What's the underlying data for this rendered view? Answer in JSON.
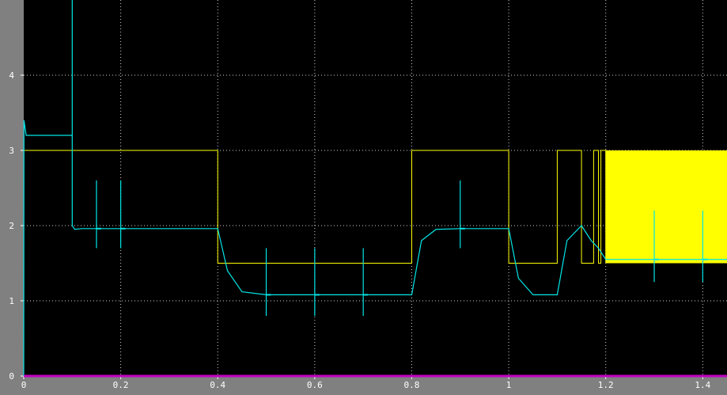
{
  "chart_data": {
    "type": "line",
    "title": "",
    "xlabel": "",
    "ylabel": "",
    "xlim": [
      0,
      1.45
    ],
    "ylim": [
      0,
      5
    ],
    "grid": true,
    "xticks": [
      0,
      0.2,
      0.4,
      0.6,
      0.8,
      1,
      1.2,
      1.4
    ],
    "yticks": [
      0,
      1,
      2,
      3,
      4
    ],
    "xtick_labels": [
      "0",
      "0.2",
      "0.4",
      "0.6",
      "0.8",
      "1",
      "1.2",
      "1.4"
    ],
    "ytick_labels": [
      "0",
      "1",
      "2",
      "3",
      "4"
    ],
    "colors": {
      "background": "#000000",
      "frame": "#808080",
      "grid": "#d0d0d0",
      "series1": "#ffff00",
      "series2": "#00e6e6",
      "baseline": "#c000c0"
    },
    "series": [
      {
        "color": "#ffff00",
        "step": true,
        "x": [
          0,
          0.4,
          0.8,
          1.0,
          1.1,
          1.15,
          1.175,
          1.185,
          1.19,
          1.2
        ],
        "y": [
          3,
          1.5,
          3,
          1.5,
          3,
          1.5,
          3,
          1.5,
          3,
          1.5
        ],
        "filled_oscillation": {
          "x": [
            1.2,
            1.45
          ],
          "y": [
            1.5,
            3
          ]
        }
      },
      {
        "color": "#00e6e6",
        "x": [
          0,
          0.0005,
          0.005,
          0.1,
          0.1,
          0.1,
          0.105,
          0.12,
          0.2,
          0.4,
          0.42,
          0.45,
          0.5,
          0.8,
          0.82,
          0.85,
          0.9,
          1.0,
          1.02,
          1.05,
          1.1,
          1.12,
          1.15,
          1.17,
          1.185,
          1.2,
          1.45
        ],
        "y": [
          0,
          3.4,
          3.2,
          3.2,
          5,
          2.0,
          1.95,
          1.96,
          1.96,
          1.96,
          1.4,
          1.12,
          1.08,
          1.08,
          1.8,
          1.95,
          1.96,
          1.96,
          1.3,
          1.08,
          1.08,
          1.8,
          2.0,
          1.8,
          1.7,
          1.55,
          1.55
        ],
        "spikes": [
          {
            "x": 0.15,
            "y": 1.96,
            "up": 2.6,
            "down": 1.7
          },
          {
            "x": 0.2,
            "y": 1.96,
            "up": 2.6,
            "down": 1.7
          },
          {
            "x": 0.5,
            "y": 1.08,
            "up": 1.7,
            "down": 0.8
          },
          {
            "x": 0.6,
            "y": 1.08,
            "up": 1.7,
            "down": 0.8
          },
          {
            "x": 0.7,
            "y": 1.08,
            "up": 1.7,
            "down": 0.8
          },
          {
            "x": 0.9,
            "y": 1.96,
            "up": 2.6,
            "down": 1.7
          },
          {
            "x": 1.3,
            "y": 1.55,
            "up": 2.2,
            "down": 1.25
          },
          {
            "x": 1.4,
            "y": 1.55,
            "up": 2.2,
            "down": 1.25
          }
        ]
      }
    ]
  }
}
